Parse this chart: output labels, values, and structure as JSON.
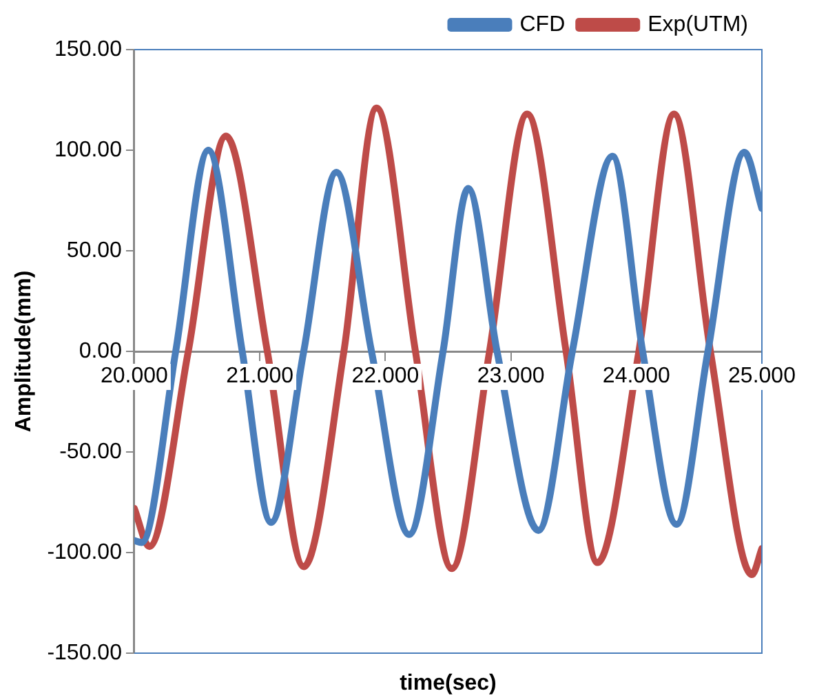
{
  "chart_data": {
    "type": "line",
    "xlabel": "time(sec)",
    "ylabel": "Amplitude(mm)",
    "xlim": [
      20,
      25
    ],
    "xticks": [
      {
        "value": 20,
        "label": "20.000"
      },
      {
        "value": 21,
        "label": "21.000"
      },
      {
        "value": 22,
        "label": "22.000"
      },
      {
        "value": 23,
        "label": "23.000"
      },
      {
        "value": 24,
        "label": "24.000"
      },
      {
        "value": 25,
        "label": "25.000"
      }
    ],
    "ylim": [
      -150,
      150
    ],
    "yticks": [
      {
        "value": -150,
        "label": "-150.00"
      },
      {
        "value": -100,
        "label": "-100.00"
      },
      {
        "value": -50,
        "label": "-50.00"
      },
      {
        "value": 0,
        "label": "0.00"
      },
      {
        "value": 50,
        "label": "50.00"
      },
      {
        "value": 100,
        "label": "100.00"
      },
      {
        "value": 150,
        "label": "150.00"
      }
    ],
    "grid": false,
    "legend": "top right",
    "marker": "none",
    "line_style": "solid",
    "series": [
      {
        "name": "CFD",
        "color": "#4a7ebb",
        "x": [
          20,
          20.06,
          20.33,
          20.59,
          20.86,
          21.09,
          21.35,
          21.61,
          21.89,
          22.19,
          22.46,
          22.66,
          22.89,
          23.22,
          23.49,
          23.81,
          24.05,
          24.32,
          24.57,
          24.86,
          25
        ],
        "values": [
          -94,
          -95,
          0,
          100,
          0,
          -85,
          0,
          89,
          0,
          -91,
          0,
          81,
          0,
          -89,
          0,
          97,
          0,
          -86,
          0,
          99,
          71
        ]
      },
      {
        "name": "Exp(UTM)",
        "color": "#be4b48",
        "x": [
          20,
          20.12,
          20.43,
          20.73,
          21.06,
          21.35,
          21.67,
          21.93,
          22.24,
          22.53,
          22.83,
          23.13,
          23.44,
          23.69,
          24.02,
          24.3,
          24.59,
          24.92,
          25
        ],
        "values": [
          -78,
          -97,
          0,
          107,
          0,
          -107,
          0,
          121,
          0,
          -108,
          0,
          118,
          0,
          -105,
          0,
          118,
          0,
          -111,
          -98
        ]
      }
    ]
  }
}
